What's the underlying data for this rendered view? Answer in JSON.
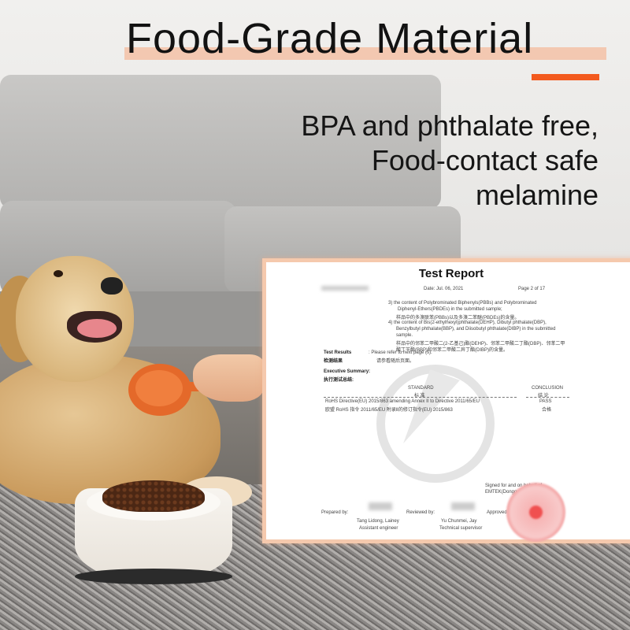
{
  "banner": {
    "title": "Food-Grade Material",
    "subtitle_lines": [
      "BPA and phthalate free,",
      "Food-contact safe",
      "melamine"
    ],
    "accent_color": "#f35a1e",
    "highlight_color": "#f3c8b1"
  },
  "report": {
    "title": "Test Report",
    "date": "Date: Jul. 06, 2021",
    "page": "Page  2 of  17",
    "item3_en": "3)  the content of Polybrominated Biphenyls(PBBs) and Polybrominated",
    "item3_en2": "Diphenyl-Ethers(PBDEs) in the submitted sample;",
    "item3_cn": "样品中的多溴联苯(PBBs)以及多溴二苯醚(PBDEs)的含量。",
    "item4_en": "4)  the content of Bis(2-ethylhexyl)phthalate(DEHP), Dibutyl phthalate(DBP),",
    "item4_en2": "Benzylbutyl phthalate(BBP), and Diisobutyl phthalate(DIBP) in the submitted",
    "item4_en3": "sample.",
    "item4_cn": "样品中的邻苯二甲酸二(2-乙基己)酯(DEHP)、邻苯二甲酸二丁酯(DBP)、邻苯二甲",
    "item4_cn2": "酸丁苄酯(BBP)和邻苯二甲酸二异丁酯(DIBP)的含量。",
    "results_label": "Test Results",
    "results_label_cn": "检测结果",
    "results_value": ":   Please refer to next page (s).",
    "results_value_cn": "请参看随后页面。",
    "summary_label": "Executive Summary:",
    "summary_label_cn": "执行测试总结:",
    "col_standard": "STANDARD",
    "col_standard_cn": "标  准",
    "col_conclusion": "CONCLUSION",
    "col_conclusion_cn": "结  论",
    "row_standard": "RoHS Directive(EU) 2015/863 amending Annex II to  Directive 2011/65/EU",
    "row_standard_cn": "欧盟 RoHS 指令 2011/65/EU 附录Ⅱ的修订指令(EU) 2015/863",
    "row_conclusion": "PASS",
    "row_conclusion_cn": "合格",
    "signed": "Signed for and on behalf of",
    "company": "EMTEK(Dongguan)",
    "prepared_label": "Prepared by:",
    "prepared_name": "Tang Lidong, Lainey",
    "prepared_role": "Assistant engineer",
    "reviewed_label": "Reviewed by:",
    "reviewed_name": "Yu Chunmei, Jay",
    "reviewed_role": "Technical supervisor",
    "approved_label": "Approved by:"
  }
}
